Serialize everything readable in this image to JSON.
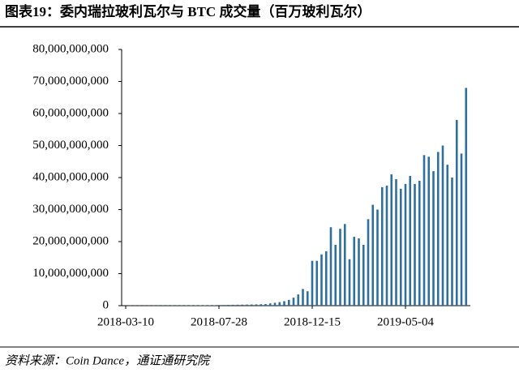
{
  "chart_data": {
    "type": "bar",
    "title": "图表19：委内瑞拉玻利瓦尔与 BTC 成交量（百万玻利瓦尔）",
    "source": "资料来源：Coin Dance，通证通研究院",
    "color": "#2f6f9e",
    "categories": [
      "2018-03-10",
      null,
      null,
      null,
      null,
      null,
      null,
      null,
      null,
      null,
      null,
      null,
      null,
      null,
      null,
      null,
      null,
      null,
      null,
      null,
      "2018-07-28",
      null,
      null,
      null,
      null,
      null,
      null,
      null,
      null,
      null,
      null,
      null,
      null,
      null,
      null,
      null,
      null,
      null,
      null,
      null,
      "2018-12-15",
      null,
      null,
      null,
      null,
      null,
      null,
      null,
      null,
      null,
      null,
      null,
      null,
      null,
      null,
      null,
      null,
      null,
      null,
      null,
      "2019-05-04",
      null,
      null,
      null,
      null,
      null,
      null,
      null,
      null,
      null,
      null,
      null,
      null,
      null
    ],
    "values": [
      30000000,
      40000000,
      40000000,
      50000000,
      50000000,
      50000000,
      60000000,
      60000000,
      70000000,
      70000000,
      80000000,
      80000000,
      90000000,
      100000000,
      100000000,
      110000000,
      120000000,
      120000000,
      130000000,
      150000000,
      200000000,
      220000000,
      250000000,
      280000000,
      300000000,
      320000000,
      350000000,
      370000000,
      400000000,
      450000000,
      500000000,
      700000000,
      900000000,
      1100000000,
      1400000000,
      1800000000,
      2500000000,
      3500000000,
      5200000000,
      4500000000,
      14000000000,
      14000000000,
      16000000000,
      17000000000,
      24500000000,
      19000000000,
      24000000000,
      25500000000,
      14500000000,
      21500000000,
      21000000000,
      19000000000,
      27000000000,
      31500000000,
      30000000000,
      37000000000,
      37500000000,
      41000000000,
      39500000000,
      36500000000,
      38000000000,
      40500000000,
      38000000000,
      39000000000,
      47000000000,
      46500000000,
      42000000000,
      48000000000,
      50000000000,
      44000000000,
      40000000000,
      58000000000,
      47500000000,
      68000000000
    ],
    "ylim": [
      0,
      80000000000
    ],
    "yticks": [
      0,
      {
        "value": 10000000000,
        "label": "10,000,000,000"
      },
      {
        "value": 20000000000,
        "label": "20,000,000,000"
      },
      {
        "value": 30000000000,
        "label": "30,000,000,000"
      },
      {
        "value": 40000000000,
        "label": "40,000,000,000"
      },
      {
        "value": 50000000000,
        "label": "50,000,000,000"
      },
      {
        "value": 60000000000,
        "label": "60,000,000,000"
      },
      {
        "value": 70000000000,
        "label": "70,000,000,000"
      },
      {
        "value": 80000000000,
        "label": "80,000,000,000"
      }
    ],
    "grid": false
  }
}
